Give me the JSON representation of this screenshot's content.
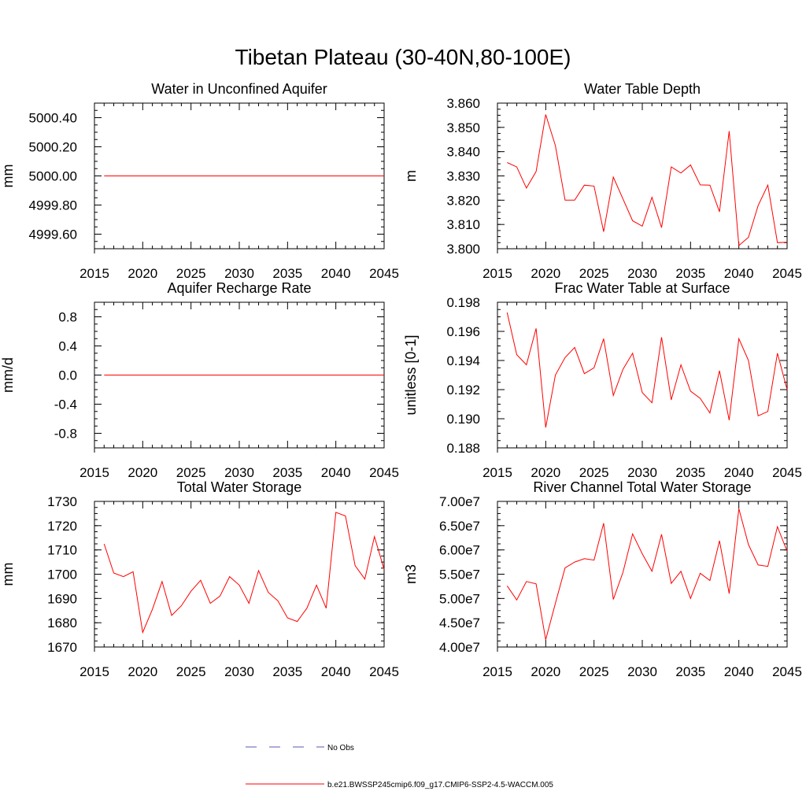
{
  "figure": {
    "title": "Tibetan Plateau (30-40N,80-100E)"
  },
  "legend": {
    "entries": [
      {
        "label": "No Obs",
        "color": "#5a5ab0",
        "style": "dashed"
      },
      {
        "label": "b.e21.BWSSP245cmip6.f09_g17.CMIP6-SSP2-4.5-WACCM.005",
        "color": "#ff0000",
        "style": "solid"
      }
    ]
  },
  "chart_data": [
    {
      "type": "line",
      "title": "Water in Unconfined Aquifer",
      "ylabel": "mm",
      "xlim": [
        2015,
        2045
      ],
      "ylim": [
        4999.5,
        5000.5
      ],
      "xticks": [
        2015,
        2020,
        2025,
        2030,
        2035,
        2040,
        2045
      ],
      "yticks": [
        4999.6,
        4999.8,
        5000.0,
        5000.2,
        5000.4
      ],
      "ytick_labels": [
        "4999.60",
        "4999.80",
        "5000.00",
        "5000.20",
        "5000.40"
      ],
      "series": [
        {
          "color": "#ff0000",
          "x": [
            2016,
            2017,
            2018,
            2019,
            2020,
            2021,
            2022,
            2023,
            2024,
            2025,
            2026,
            2027,
            2028,
            2029,
            2030,
            2031,
            2032,
            2033,
            2034,
            2035,
            2036,
            2037,
            2038,
            2039,
            2040,
            2041,
            2042,
            2043,
            2044,
            2045
          ],
          "values": [
            5000,
            5000,
            5000,
            5000,
            5000,
            5000,
            5000,
            5000,
            5000,
            5000,
            5000,
            5000,
            5000,
            5000,
            5000,
            5000,
            5000,
            5000,
            5000,
            5000,
            5000,
            5000,
            5000,
            5000,
            5000,
            5000,
            5000,
            5000,
            5000,
            5000
          ]
        }
      ]
    },
    {
      "type": "line",
      "title": "Water Table Depth",
      "ylabel": "m",
      "xlim": [
        2015,
        2045
      ],
      "ylim": [
        3.8,
        3.86
      ],
      "xticks": [
        2015,
        2020,
        2025,
        2030,
        2035,
        2040,
        2045
      ],
      "yticks": [
        3.8,
        3.81,
        3.82,
        3.83,
        3.84,
        3.85,
        3.86
      ],
      "ytick_labels": [
        "3.800",
        "3.810",
        "3.820",
        "3.830",
        "3.840",
        "3.850",
        "3.860"
      ],
      "series": [
        {
          "color": "#ff0000",
          "x": [
            2016,
            2017,
            2018,
            2019,
            2020,
            2021,
            2022,
            2023,
            2024,
            2025,
            2026,
            2027,
            2028,
            2029,
            2030,
            2031,
            2032,
            2033,
            2034,
            2035,
            2036,
            2037,
            2038,
            2039,
            2040,
            2041,
            2042,
            2043,
            2044,
            2045
          ],
          "values": [
            3.8355,
            3.8337,
            3.825,
            3.8318,
            3.8553,
            3.8425,
            3.82,
            3.82,
            3.8262,
            3.8258,
            3.807,
            3.8295,
            3.8205,
            3.8115,
            3.8093,
            3.8212,
            3.8087,
            3.8337,
            3.8312,
            3.8345,
            3.8263,
            3.8262,
            3.8152,
            3.8485,
            3.8013,
            3.8047,
            3.8178,
            3.8262,
            3.8025,
            3.8027
          ]
        }
      ]
    },
    {
      "type": "line",
      "title": "Aquifer Recharge Rate",
      "ylabel": "mm/d",
      "xlim": [
        2015,
        2045
      ],
      "ylim": [
        -1.0,
        1.0
      ],
      "xticks": [
        2015,
        2020,
        2025,
        2030,
        2035,
        2040,
        2045
      ],
      "yticks": [
        -0.8,
        -0.4,
        0.0,
        0.4,
        0.8
      ],
      "ytick_labels": [
        "-0.8",
        "-0.4",
        "0.0",
        "0.4",
        "0.8"
      ],
      "series": [
        {
          "color": "#ff0000",
          "x": [
            2016,
            2017,
            2018,
            2019,
            2020,
            2021,
            2022,
            2023,
            2024,
            2025,
            2026,
            2027,
            2028,
            2029,
            2030,
            2031,
            2032,
            2033,
            2034,
            2035,
            2036,
            2037,
            2038,
            2039,
            2040,
            2041,
            2042,
            2043,
            2044,
            2045
          ],
          "values": [
            0,
            0,
            0,
            0,
            0,
            0,
            0,
            0,
            0,
            0,
            0,
            0,
            0,
            0,
            0,
            0,
            0,
            0,
            0,
            0,
            0,
            0,
            0,
            0,
            0,
            0,
            0,
            0,
            0,
            0
          ]
        }
      ]
    },
    {
      "type": "line",
      "title": "Frac Water Table at Surface",
      "ylabel": "unitless [0-1]",
      "xlim": [
        2015,
        2045
      ],
      "ylim": [
        0.188,
        0.198
      ],
      "xticks": [
        2015,
        2020,
        2025,
        2030,
        2035,
        2040,
        2045
      ],
      "yticks": [
        0.188,
        0.19,
        0.192,
        0.194,
        0.196,
        0.198
      ],
      "ytick_labels": [
        "0.188",
        "0.190",
        "0.192",
        "0.194",
        "0.196",
        "0.198"
      ],
      "series": [
        {
          "color": "#ff0000",
          "x": [
            2016,
            2017,
            2018,
            2019,
            2020,
            2021,
            2022,
            2023,
            2024,
            2025,
            2026,
            2027,
            2028,
            2029,
            2030,
            2031,
            2032,
            2033,
            2034,
            2035,
            2036,
            2037,
            2038,
            2039,
            2040,
            2041,
            2042,
            2043,
            2044,
            2045
          ],
          "values": [
            0.1973,
            0.1944,
            0.1937,
            0.1962,
            0.1894,
            0.193,
            0.1942,
            0.1949,
            0.1931,
            0.1935,
            0.1955,
            0.1916,
            0.1934,
            0.1945,
            0.1918,
            0.1911,
            0.1956,
            0.1913,
            0.1937,
            0.1919,
            0.1914,
            0.1904,
            0.1933,
            0.1899,
            0.1955,
            0.194,
            0.1902,
            0.1905,
            0.1945,
            0.192
          ]
        }
      ]
    },
    {
      "type": "line",
      "title": "Total Water Storage",
      "ylabel": "mm",
      "xlim": [
        2015,
        2045
      ],
      "ylim": [
        1670,
        1730
      ],
      "xticks": [
        2015,
        2020,
        2025,
        2030,
        2035,
        2040,
        2045
      ],
      "yticks": [
        1670,
        1680,
        1690,
        1700,
        1710,
        1720,
        1730
      ],
      "ytick_labels": [
        "1670",
        "1680",
        "1690",
        "1700",
        "1710",
        "1720",
        "1730"
      ],
      "series": [
        {
          "color": "#ff0000",
          "x": [
            2016,
            2017,
            2018,
            2019,
            2020,
            2021,
            2022,
            2023,
            2024,
            2025,
            2026,
            2027,
            2028,
            2029,
            2030,
            2031,
            2032,
            2033,
            2034,
            2035,
            2036,
            2037,
            2038,
            2039,
            2040,
            2041,
            2042,
            2043,
            2044,
            2045
          ],
          "values": [
            1712.5,
            1700.5,
            1699.0,
            1701.0,
            1676.0,
            1685.5,
            1697.0,
            1683.0,
            1687.0,
            1693.0,
            1697.5,
            1688.0,
            1691.0,
            1699.0,
            1695.5,
            1688.0,
            1701.5,
            1692.5,
            1689.0,
            1682.0,
            1680.5,
            1686.0,
            1695.5,
            1686.0,
            1725.5,
            1724.0,
            1703.5,
            1698.0,
            1715.5,
            1702.0
          ]
        }
      ]
    },
    {
      "type": "line",
      "title": "River Channel Total Water Storage",
      "ylabel": "m3",
      "xlim": [
        2015,
        2045
      ],
      "ylim": [
        40000000,
        70000000
      ],
      "xticks": [
        2015,
        2020,
        2025,
        2030,
        2035,
        2040,
        2045
      ],
      "yticks": [
        40000000,
        45000000,
        50000000,
        55000000,
        60000000,
        65000000,
        70000000
      ],
      "ytick_labels": [
        "4.00e7",
        "4.50e7",
        "5.00e7",
        "5.50e7",
        "6.00e7",
        "6.50e7",
        "7.00e7"
      ],
      "series": [
        {
          "color": "#ff0000",
          "x": [
            2016,
            2017,
            2018,
            2019,
            2020,
            2021,
            2022,
            2023,
            2024,
            2025,
            2026,
            2027,
            2028,
            2029,
            2030,
            2031,
            2032,
            2033,
            2034,
            2035,
            2036,
            2037,
            2038,
            2039,
            2040,
            2041,
            2042,
            2043,
            2044,
            2045
          ],
          "values": [
            52600000,
            49700000,
            53500000,
            53000000,
            41500000,
            49000000,
            56300000,
            57500000,
            58200000,
            57900000,
            65500000,
            49800000,
            55400000,
            63300000,
            59200000,
            55600000,
            63200000,
            53100000,
            55600000,
            50000000,
            55200000,
            53700000,
            61900000,
            51000000,
            68500000,
            61100000,
            56900000,
            56600000,
            64800000,
            59700000
          ]
        }
      ]
    }
  ]
}
